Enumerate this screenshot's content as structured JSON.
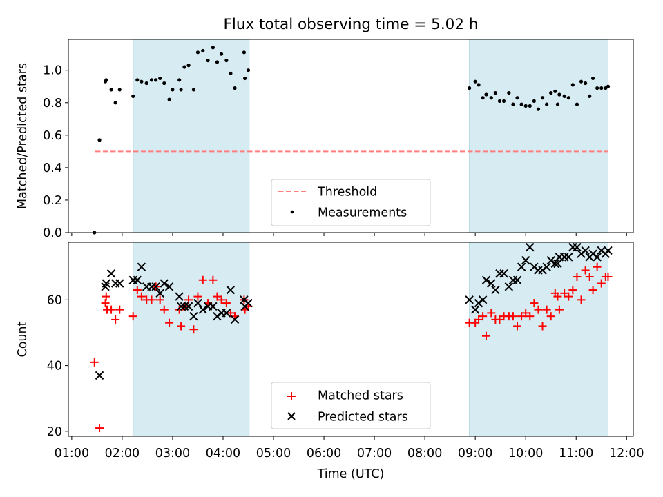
{
  "chart_data": [
    {
      "type": "scatter",
      "title": "Flux total observing time = 5.02 h",
      "ylabel": "Matched/Predicted stars",
      "xlabel": "",
      "ylim": [
        0,
        1.19
      ],
      "yticks": [
        "0.0",
        "0.2",
        "0.4",
        "0.6",
        "0.8",
        "1.0"
      ],
      "ytick_values": [
        0,
        0.2,
        0.4,
        0.6,
        0.8,
        1.0
      ],
      "threshold": {
        "name": "Threshold",
        "value": 0.5,
        "x_start": "01:28",
        "x_end": "11:38",
        "color": "#ff7f7f"
      },
      "shaded_intervals": [
        [
          "02:13",
          "04:31"
        ],
        [
          "08:53",
          "11:38"
        ]
      ],
      "shade_color": "#add8e6",
      "legend_position": "lower center",
      "legend": [
        "Threshold",
        "Measurements"
      ],
      "series": [
        {
          "name": "Measurements",
          "marker": "dot",
          "color": "#000000",
          "x": [
            "01:27",
            "01:33",
            "01:40",
            "01:41",
            "01:47",
            "01:52",
            "01:57",
            "02:13",
            "02:18",
            "02:23",
            "02:29",
            "02:35",
            "02:40",
            "02:45",
            "02:50",
            "02:56",
            "03:00",
            "03:08",
            "03:10",
            "03:14",
            "03:19",
            "03:25",
            "03:30",
            "03:36",
            "03:42",
            "03:48",
            "03:53",
            "03:58",
            "04:04",
            "04:09",
            "04:14",
            "04:25",
            "04:26",
            "04:30",
            "08:53",
            "09:00",
            "09:04",
            "09:09",
            "09:13",
            "09:19",
            "09:24",
            "09:29",
            "09:34",
            "09:40",
            "09:45",
            "09:50",
            "09:55",
            "10:00",
            "10:05",
            "10:10",
            "10:15",
            "10:20",
            "10:25",
            "10:30",
            "10:35",
            "10:38",
            "10:40",
            "10:46",
            "10:51",
            "10:56",
            "11:01",
            "11:06",
            "11:11",
            "11:16",
            "11:20",
            "11:25",
            "11:30",
            "11:35",
            "11:38"
          ],
          "y": [
            0.0,
            0.57,
            0.93,
            0.94,
            0.88,
            0.8,
            0.88,
            0.84,
            0.94,
            0.93,
            0.92,
            0.94,
            0.94,
            0.95,
            0.92,
            0.82,
            0.88,
            0.94,
            0.88,
            1.02,
            1.03,
            0.88,
            1.11,
            1.12,
            1.06,
            1.14,
            1.05,
            1.1,
            1.06,
            0.98,
            0.89,
            1.11,
            0.95,
            1.0,
            0.89,
            0.93,
            0.91,
            0.83,
            0.85,
            0.83,
            0.86,
            0.81,
            0.81,
            0.86,
            0.79,
            0.83,
            0.79,
            0.78,
            0.78,
            0.81,
            0.76,
            0.83,
            0.79,
            0.86,
            0.87,
            0.79,
            0.85,
            0.84,
            0.83,
            0.91,
            0.79,
            0.93,
            0.92,
            0.84,
            0.95,
            0.89,
            0.89,
            0.89,
            0.9
          ]
        }
      ]
    },
    {
      "type": "scatter",
      "title": "",
      "ylabel": "Count",
      "xlabel": "Time (UTC)",
      "ylim": [
        18.5,
        77.5
      ],
      "yticks": [
        "20",
        "40",
        "60"
      ],
      "ytick_values": [
        20,
        40,
        60
      ],
      "xlim": [
        "00:56",
        "12:08"
      ],
      "xticks": [
        "01:00",
        "02:00",
        "03:00",
        "04:00",
        "05:00",
        "06:00",
        "07:00",
        "08:00",
        "09:00",
        "10:00",
        "11:00",
        "12:00"
      ],
      "shaded_intervals": [
        [
          "02:13",
          "04:31"
        ],
        [
          "08:53",
          "11:38"
        ]
      ],
      "shade_color": "#add8e6",
      "legend_position": "lower center",
      "legend": [
        "Matched stars",
        "Predicted stars"
      ],
      "series": [
        {
          "name": "Matched stars",
          "marker": "plus",
          "color": "#ff0000",
          "x": [
            "01:27",
            "01:33",
            "01:40",
            "01:41",
            "01:42",
            "01:47",
            "01:52",
            "01:57",
            "02:13",
            "02:18",
            "02:23",
            "02:29",
            "02:35",
            "02:40",
            "02:45",
            "02:50",
            "02:56",
            "03:08",
            "03:10",
            "03:14",
            "03:19",
            "03:25",
            "03:30",
            "03:36",
            "03:42",
            "03:48",
            "03:53",
            "03:58",
            "04:04",
            "04:09",
            "04:14",
            "04:25",
            "04:26",
            "04:30",
            "08:53",
            "09:00",
            "09:04",
            "09:09",
            "09:13",
            "09:19",
            "09:24",
            "09:29",
            "09:34",
            "09:40",
            "09:45",
            "09:50",
            "09:55",
            "10:00",
            "10:05",
            "10:10",
            "10:15",
            "10:20",
            "10:25",
            "10:30",
            "10:35",
            "10:38",
            "10:40",
            "10:46",
            "10:51",
            "10:56",
            "11:01",
            "11:06",
            "11:11",
            "11:16",
            "11:20",
            "11:25",
            "11:30",
            "11:35",
            "11:38"
          ],
          "y": [
            41,
            21,
            59,
            61,
            57,
            57,
            54,
            57,
            55,
            63,
            61,
            60,
            60,
            64,
            60,
            57,
            53,
            57,
            52,
            58,
            60,
            51,
            61,
            66,
            59,
            66,
            61,
            60,
            59,
            56,
            55,
            60,
            57,
            58,
            53,
            53,
            54,
            55,
            49,
            56,
            54,
            54,
            55,
            55,
            55,
            52,
            55,
            56,
            55,
            59,
            57,
            52,
            57,
            55,
            62,
            61,
            57,
            62,
            61,
            63,
            67,
            60,
            69,
            67,
            63,
            70,
            65,
            67,
            67
          ]
        },
        {
          "name": "Predicted stars",
          "marker": "x",
          "color": "#000000",
          "x": [
            "01:33",
            "01:40",
            "01:41",
            "01:47",
            "01:52",
            "01:57",
            "02:13",
            "02:18",
            "02:23",
            "02:29",
            "02:35",
            "02:40",
            "02:45",
            "02:50",
            "02:56",
            "03:08",
            "03:10",
            "03:14",
            "03:19",
            "03:25",
            "03:30",
            "03:36",
            "03:42",
            "03:48",
            "03:53",
            "03:58",
            "04:04",
            "04:09",
            "04:14",
            "04:25",
            "04:26",
            "04:30",
            "08:53",
            "09:00",
            "09:04",
            "09:09",
            "09:13",
            "09:19",
            "09:24",
            "09:29",
            "09:34",
            "09:40",
            "09:45",
            "09:50",
            "09:55",
            "10:00",
            "10:05",
            "10:10",
            "10:15",
            "10:20",
            "10:25",
            "10:30",
            "10:35",
            "10:38",
            "10:40",
            "10:46",
            "10:51",
            "10:56",
            "11:01",
            "11:06",
            "11:11",
            "11:16",
            "11:20",
            "11:25",
            "11:30",
            "11:35",
            "11:38"
          ],
          "y": [
            37,
            64,
            65,
            68,
            65,
            65,
            66,
            66,
            70,
            64,
            64,
            64,
            62,
            65,
            64,
            61,
            58,
            58,
            58,
            55,
            59,
            57,
            58,
            58,
            55,
            56,
            56,
            63,
            54,
            60,
            58,
            59,
            60,
            57,
            59,
            60,
            66,
            65,
            63,
            68,
            68,
            64,
            66,
            66,
            70,
            72,
            76,
            70,
            69,
            69,
            70,
            72,
            71,
            71,
            73,
            73,
            73,
            76,
            76,
            74,
            75,
            73,
            74,
            73,
            75,
            74,
            75
          ]
        }
      ]
    }
  ]
}
